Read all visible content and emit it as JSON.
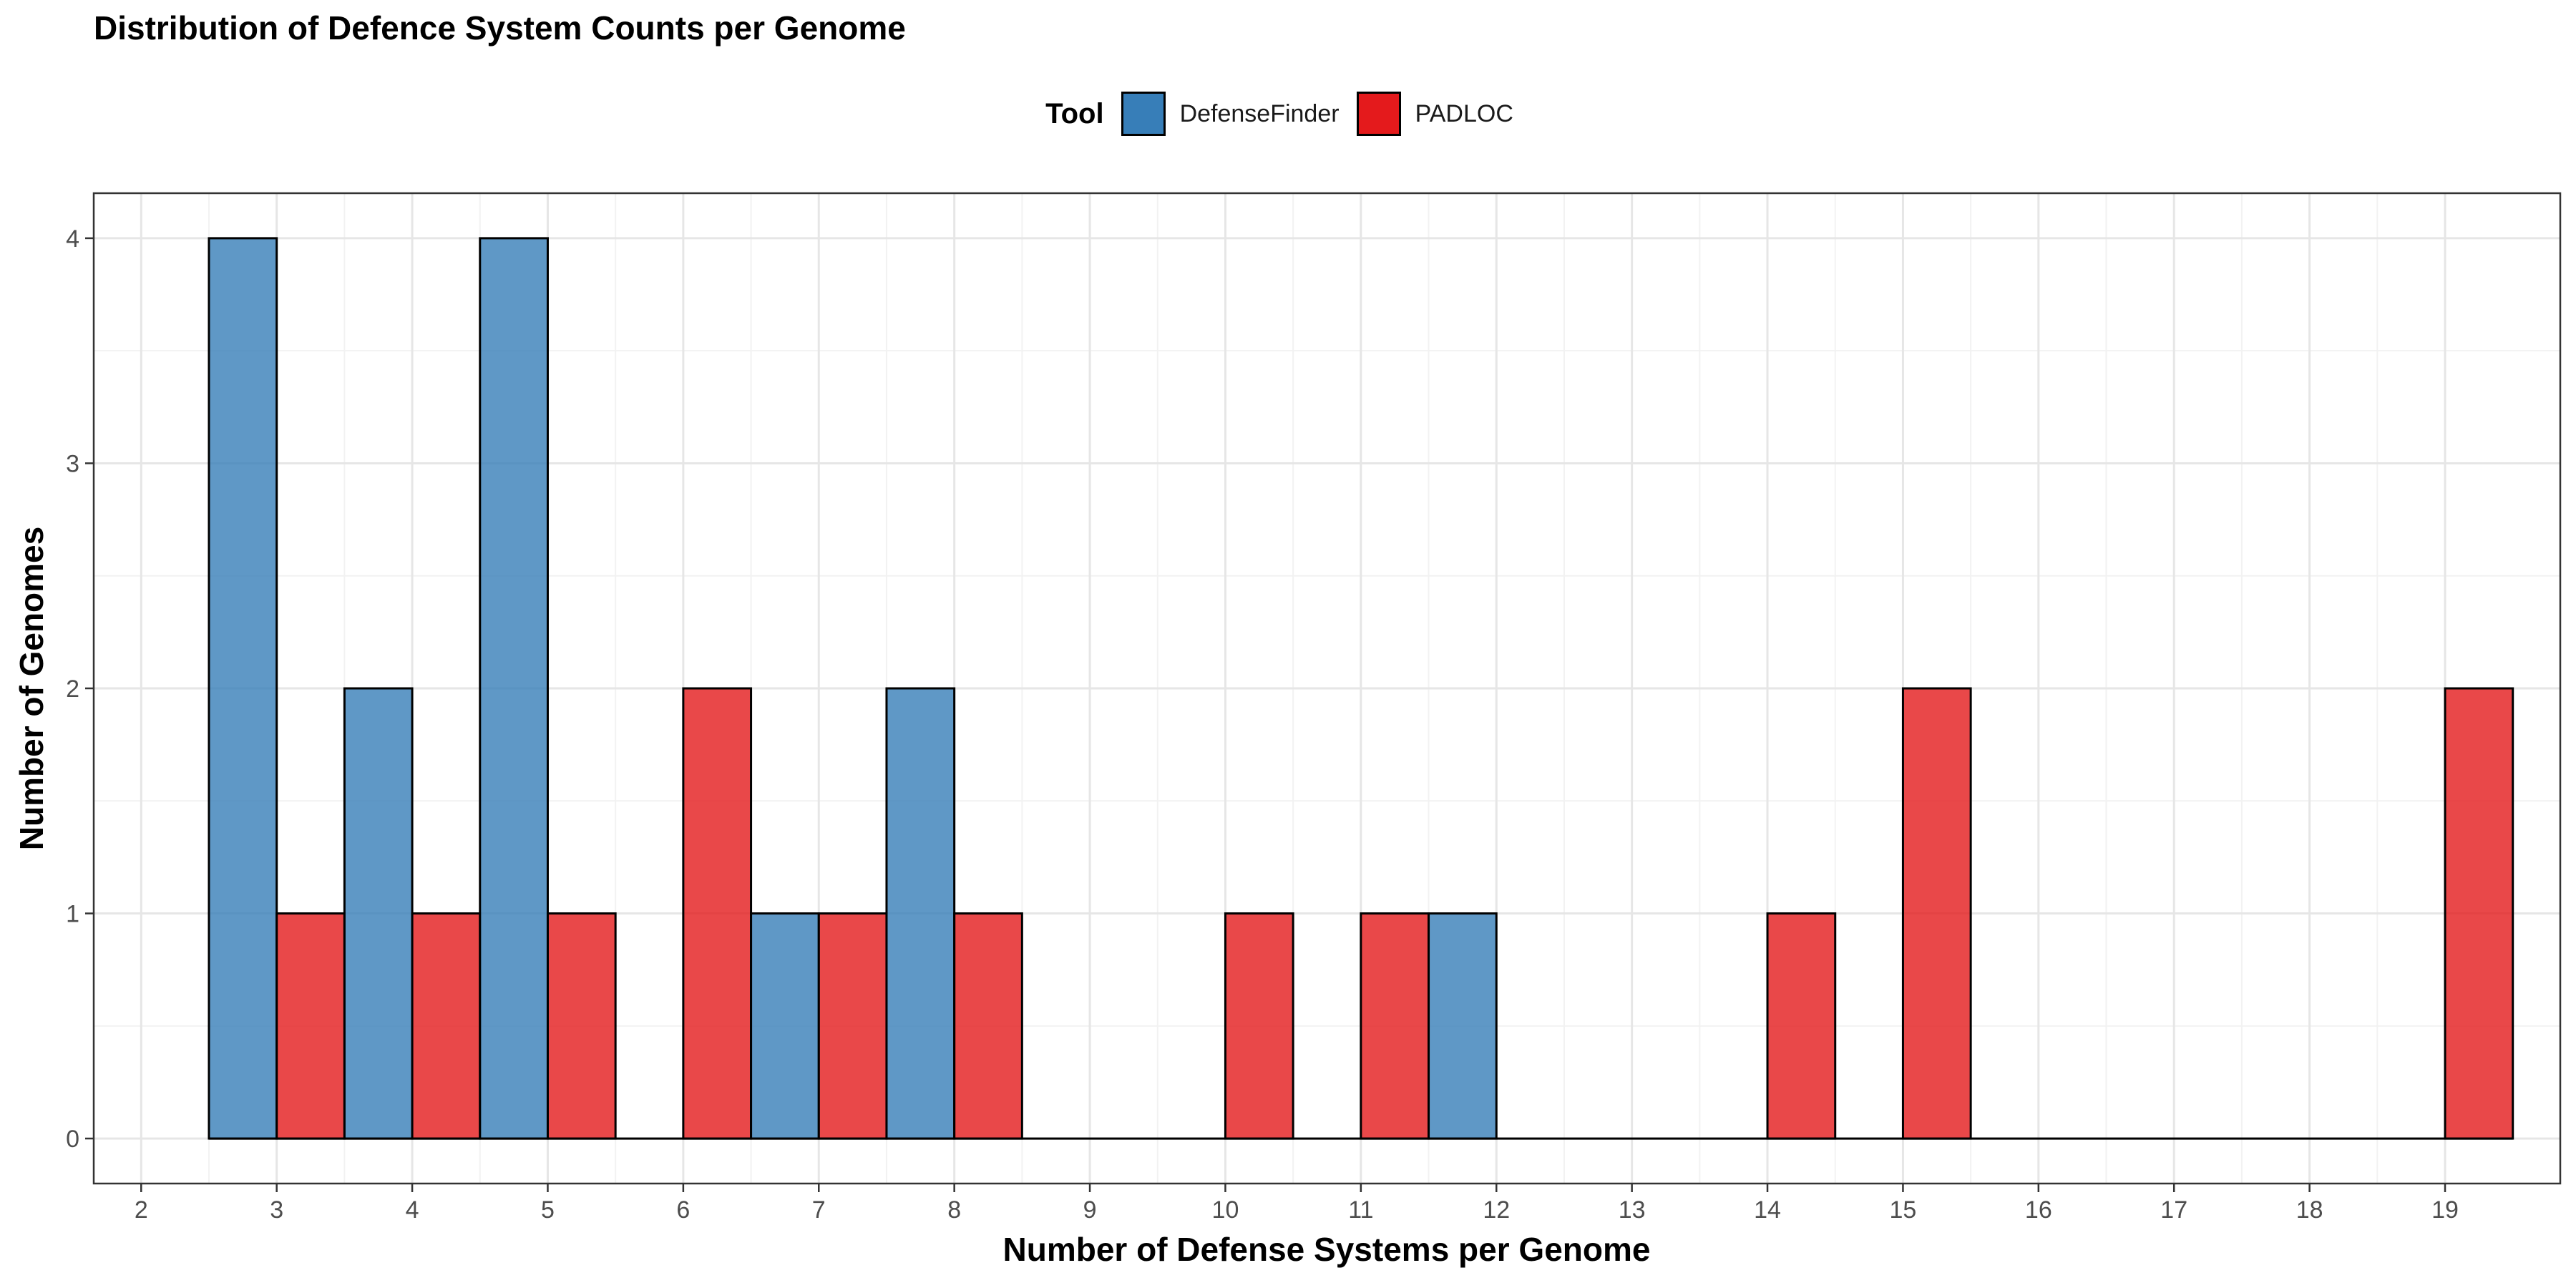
{
  "chart_data": {
    "type": "bar",
    "title": "Distribution of Defence System Counts per Genome",
    "xlabel": "Number of Defense Systems per Genome",
    "ylabel": "Number of Genomes",
    "legend_title": "Tool",
    "legend_position": "top",
    "grid": true,
    "xlim": [
      1.65,
      19.85
    ],
    "ylim": [
      -0.2,
      4.2
    ],
    "x_ticks": [
      "2",
      "3",
      "4",
      "5",
      "6",
      "7",
      "8",
      "9",
      "10",
      "11",
      "12",
      "13",
      "14",
      "15",
      "16",
      "17",
      "18",
      "19"
    ],
    "y_ticks": [
      "0",
      "1",
      "2",
      "3",
      "4"
    ],
    "categories": [
      3,
      4,
      5,
      6,
      7,
      8,
      9,
      10,
      11,
      12,
      13,
      14,
      15,
      16,
      17,
      18,
      19
    ],
    "series": [
      {
        "name": "DefenseFinder",
        "color": "#377EB8",
        "values": [
          4,
          2,
          4,
          0,
          1,
          2,
          0,
          0,
          0,
          1,
          0,
          0,
          0,
          0,
          0,
          0,
          0
        ]
      },
      {
        "name": "PADLOC",
        "color": "#E41A1C",
        "values": [
          1,
          1,
          1,
          2,
          1,
          1,
          0,
          1,
          1,
          0,
          0,
          1,
          2,
          0,
          0,
          0,
          2
        ]
      }
    ]
  }
}
